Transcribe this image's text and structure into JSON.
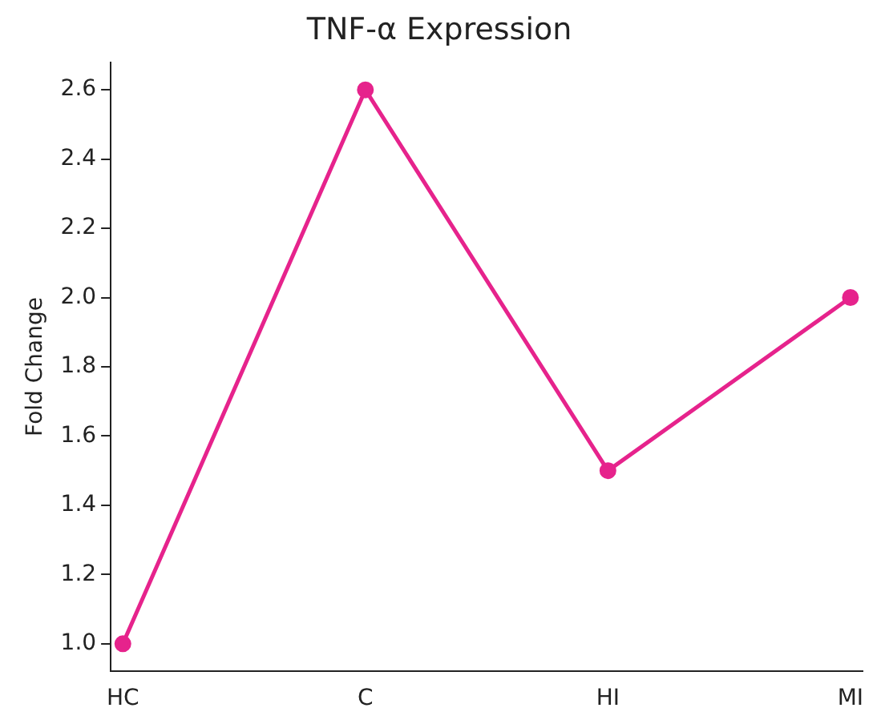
{
  "chart_data": {
    "type": "line",
    "title": "TNF-α Expression",
    "ylabel": "Fold Change",
    "categories": [
      "HC",
      "C",
      "HI",
      "MI"
    ],
    "series": [
      {
        "color": "#e6238c",
        "values": [
          1.0,
          2.6,
          1.5,
          2.0
        ]
      }
    ],
    "ylim": [
      0.92,
      2.68
    ],
    "yticks": [
      {
        "value": 1,
        "label": "1.0"
      },
      1.2,
      1.4,
      1.6,
      1.8,
      {
        "value": 2,
        "label": "2.0"
      },
      2.2,
      2.4,
      2.6
    ],
    "marker": "circle",
    "line_style": "solid",
    "grid": false,
    "legend": false
  }
}
